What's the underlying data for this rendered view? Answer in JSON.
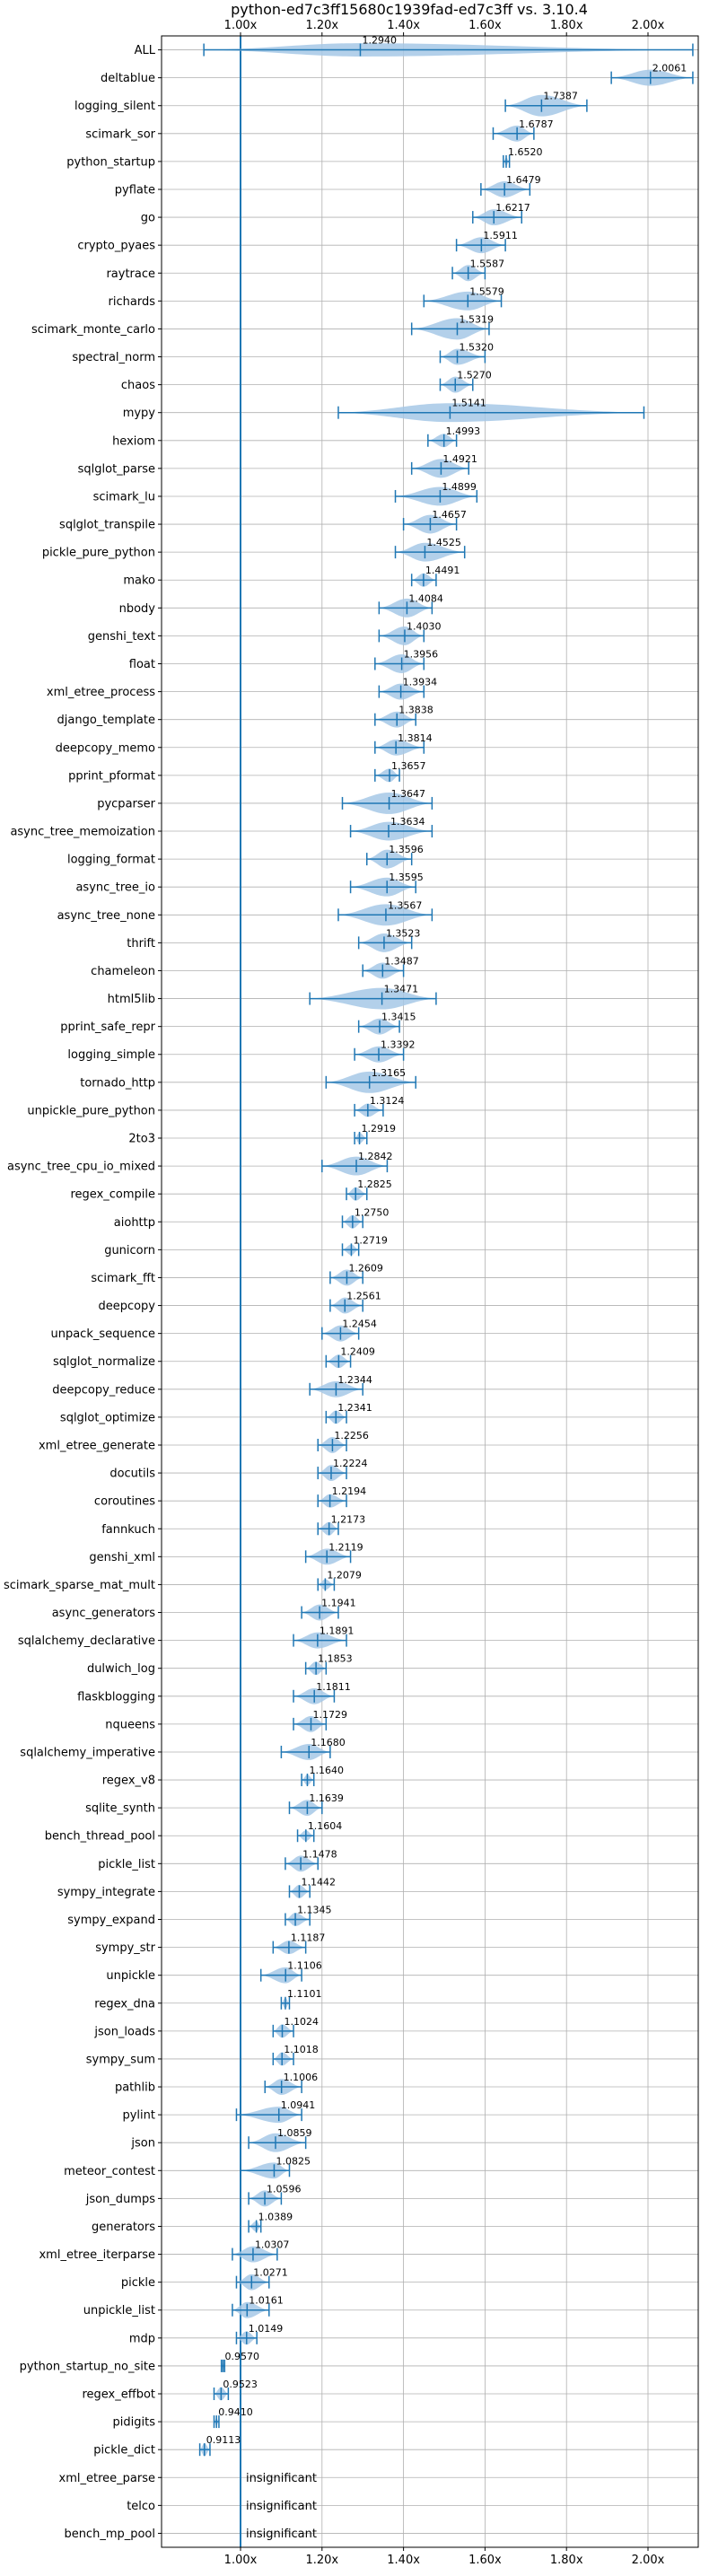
{
  "chart_data": {
    "type": "violin",
    "title": "python-ed7c3ff15680c1939fad-ed7c3ff vs. 3.10.4",
    "xlabel": "",
    "ylabel": "",
    "xlim": [
      0.9,
      2.17
    ],
    "x_ticks": [
      "1.00x",
      "1.20x",
      "1.40x",
      "1.60x",
      "1.80x",
      "2.00x"
    ],
    "x_tick_values": [
      1.0,
      1.2,
      1.4,
      1.6,
      1.8,
      2.0
    ],
    "reference_line": 1.0,
    "grid": true,
    "colors": {
      "line": "#1f77b4",
      "violin": "#a6c8e6"
    },
    "insignificant_label": "insignificant",
    "benchmarks": [
      {
        "name": "ALL",
        "label": "1.2940",
        "value": 1.294,
        "min": 0.91,
        "max": 2.11,
        "spread": 0.5
      },
      {
        "name": "deltablue",
        "label": "2.0061",
        "value": 2.0061,
        "min": 1.91,
        "max": 2.11,
        "spread": 0.6
      },
      {
        "name": "logging_silent",
        "label": "1.7387",
        "value": 1.7387,
        "min": 1.65,
        "max": 1.85,
        "spread": 0.8
      },
      {
        "name": "scimark_sor",
        "label": "1.6787",
        "value": 1.6787,
        "min": 1.62,
        "max": 1.72,
        "spread": 0.6
      },
      {
        "name": "python_startup",
        "label": "1.6520",
        "value": 1.652,
        "min": 1.645,
        "max": 1.66,
        "spread": 0.3
      },
      {
        "name": "pyflate",
        "label": "1.6479",
        "value": 1.6479,
        "min": 1.59,
        "max": 1.71,
        "spread": 0.6
      },
      {
        "name": "go",
        "label": "1.6217",
        "value": 1.6217,
        "min": 1.57,
        "max": 1.69,
        "spread": 0.6
      },
      {
        "name": "crypto_pyaes",
        "label": "1.5911",
        "value": 1.5911,
        "min": 1.53,
        "max": 1.65,
        "spread": 0.6
      },
      {
        "name": "raytrace",
        "label": "1.5587",
        "value": 1.5587,
        "min": 1.52,
        "max": 1.6,
        "spread": 0.6
      },
      {
        "name": "richards",
        "label": "1.5579",
        "value": 1.5579,
        "min": 1.45,
        "max": 1.64,
        "spread": 0.7
      },
      {
        "name": "scimark_monte_carlo",
        "label": "1.5319",
        "value": 1.5319,
        "min": 1.42,
        "max": 1.61,
        "spread": 0.8
      },
      {
        "name": "spectral_norm",
        "label": "1.5320",
        "value": 1.532,
        "min": 1.49,
        "max": 1.6,
        "spread": 0.6
      },
      {
        "name": "chaos",
        "label": "1.5270",
        "value": 1.527,
        "min": 1.49,
        "max": 1.57,
        "spread": 0.6
      },
      {
        "name": "mypy",
        "label": "1.5141",
        "value": 1.5141,
        "min": 1.24,
        "max": 1.99,
        "spread": 0.7
      },
      {
        "name": "hexiom",
        "label": "1.4993",
        "value": 1.4993,
        "min": 1.46,
        "max": 1.53,
        "spread": 0.5
      },
      {
        "name": "sqlglot_parse",
        "label": "1.4921",
        "value": 1.4921,
        "min": 1.42,
        "max": 1.56,
        "spread": 0.7
      },
      {
        "name": "scimark_lu",
        "label": "1.4899",
        "value": 1.4899,
        "min": 1.38,
        "max": 1.58,
        "spread": 0.7
      },
      {
        "name": "sqlglot_transpile",
        "label": "1.4657",
        "value": 1.4657,
        "min": 1.4,
        "max": 1.53,
        "spread": 0.7
      },
      {
        "name": "pickle_pure_python",
        "label": "1.4525",
        "value": 1.4525,
        "min": 1.38,
        "max": 1.55,
        "spread": 0.7
      },
      {
        "name": "mako",
        "label": "1.4491",
        "value": 1.4491,
        "min": 1.42,
        "max": 1.48,
        "spread": 0.5
      },
      {
        "name": "nbody",
        "label": "1.4084",
        "value": 1.4084,
        "min": 1.34,
        "max": 1.47,
        "spread": 0.7
      },
      {
        "name": "genshi_text",
        "label": "1.4030",
        "value": 1.403,
        "min": 1.34,
        "max": 1.45,
        "spread": 0.7
      },
      {
        "name": "float",
        "label": "1.3956",
        "value": 1.3956,
        "min": 1.33,
        "max": 1.45,
        "spread": 0.7
      },
      {
        "name": "xml_etree_process",
        "label": "1.3934",
        "value": 1.3934,
        "min": 1.34,
        "max": 1.45,
        "spread": 0.6
      },
      {
        "name": "django_template",
        "label": "1.3838",
        "value": 1.3838,
        "min": 1.33,
        "max": 1.43,
        "spread": 0.6
      },
      {
        "name": "deepcopy_memo",
        "label": "1.3814",
        "value": 1.3814,
        "min": 1.33,
        "max": 1.45,
        "spread": 0.6
      },
      {
        "name": "pprint_pformat",
        "label": "1.3657",
        "value": 1.3657,
        "min": 1.33,
        "max": 1.39,
        "spread": 0.5
      },
      {
        "name": "pycparser",
        "label": "1.3647",
        "value": 1.3647,
        "min": 1.25,
        "max": 1.47,
        "spread": 0.8
      },
      {
        "name": "async_tree_memoization",
        "label": "1.3634",
        "value": 1.3634,
        "min": 1.27,
        "max": 1.47,
        "spread": 0.7
      },
      {
        "name": "logging_format",
        "label": "1.3596",
        "value": 1.3596,
        "min": 1.31,
        "max": 1.42,
        "spread": 0.7
      },
      {
        "name": "async_tree_io",
        "label": "1.3595",
        "value": 1.3595,
        "min": 1.27,
        "max": 1.43,
        "spread": 0.7
      },
      {
        "name": "async_tree_none",
        "label": "1.3567",
        "value": 1.3567,
        "min": 1.24,
        "max": 1.47,
        "spread": 0.8
      },
      {
        "name": "thrift",
        "label": "1.3523",
        "value": 1.3523,
        "min": 1.29,
        "max": 1.42,
        "spread": 0.7
      },
      {
        "name": "chameleon",
        "label": "1.3487",
        "value": 1.3487,
        "min": 1.3,
        "max": 1.4,
        "spread": 0.6
      },
      {
        "name": "html5lib",
        "label": "1.3471",
        "value": 1.3471,
        "min": 1.17,
        "max": 1.48,
        "spread": 0.8
      },
      {
        "name": "pprint_safe_repr",
        "label": "1.3415",
        "value": 1.3415,
        "min": 1.29,
        "max": 1.39,
        "spread": 0.6
      },
      {
        "name": "logging_simple",
        "label": "1.3392",
        "value": 1.3392,
        "min": 1.28,
        "max": 1.4,
        "spread": 0.6
      },
      {
        "name": "tornado_http",
        "label": "1.3165",
        "value": 1.3165,
        "min": 1.21,
        "max": 1.43,
        "spread": 0.8
      },
      {
        "name": "unpickle_pure_python",
        "label": "1.3124",
        "value": 1.3124,
        "min": 1.28,
        "max": 1.35,
        "spread": 0.5
      },
      {
        "name": "2to3",
        "label": "1.2919",
        "value": 1.2919,
        "min": 1.28,
        "max": 1.31,
        "spread": 0.4
      },
      {
        "name": "async_tree_cpu_io_mixed",
        "label": "1.2842",
        "value": 1.2842,
        "min": 1.2,
        "max": 1.36,
        "spread": 0.7
      },
      {
        "name": "regex_compile",
        "label": "1.2825",
        "value": 1.2825,
        "min": 1.26,
        "max": 1.31,
        "spread": 0.5
      },
      {
        "name": "aiohttp",
        "label": "1.2750",
        "value": 1.275,
        "min": 1.25,
        "max": 1.3,
        "spread": 0.5
      },
      {
        "name": "gunicorn",
        "label": "1.2719",
        "value": 1.2719,
        "min": 1.25,
        "max": 1.29,
        "spread": 0.4
      },
      {
        "name": "scimark_fft",
        "label": "1.2609",
        "value": 1.2609,
        "min": 1.22,
        "max": 1.3,
        "spread": 0.6
      },
      {
        "name": "deepcopy",
        "label": "1.2561",
        "value": 1.2561,
        "min": 1.22,
        "max": 1.3,
        "spread": 0.6
      },
      {
        "name": "unpack_sequence",
        "label": "1.2454",
        "value": 1.2454,
        "min": 1.2,
        "max": 1.29,
        "spread": 0.6
      },
      {
        "name": "sqlglot_normalize",
        "label": "1.2409",
        "value": 1.2409,
        "min": 1.21,
        "max": 1.27,
        "spread": 0.5
      },
      {
        "name": "deepcopy_reduce",
        "label": "1.2344",
        "value": 1.2344,
        "min": 1.17,
        "max": 1.3,
        "spread": 0.6
      },
      {
        "name": "sqlglot_optimize",
        "label": "1.2341",
        "value": 1.2341,
        "min": 1.21,
        "max": 1.26,
        "spread": 0.5
      },
      {
        "name": "xml_etree_generate",
        "label": "1.2256",
        "value": 1.2256,
        "min": 1.19,
        "max": 1.26,
        "spread": 0.6
      },
      {
        "name": "docutils",
        "label": "1.2224",
        "value": 1.2224,
        "min": 1.19,
        "max": 1.26,
        "spread": 0.6
      },
      {
        "name": "coroutines",
        "label": "1.2194",
        "value": 1.2194,
        "min": 1.19,
        "max": 1.26,
        "spread": 0.5
      },
      {
        "name": "fannkuch",
        "label": "1.2173",
        "value": 1.2173,
        "min": 1.19,
        "max": 1.24,
        "spread": 0.5
      },
      {
        "name": "genshi_xml",
        "label": "1.2119",
        "value": 1.2119,
        "min": 1.16,
        "max": 1.27,
        "spread": 0.6
      },
      {
        "name": "scimark_sparse_mat_mult",
        "label": "1.2079",
        "value": 1.2079,
        "min": 1.19,
        "max": 1.23,
        "spread": 0.4
      },
      {
        "name": "async_generators",
        "label": "1.1941",
        "value": 1.1941,
        "min": 1.15,
        "max": 1.24,
        "spread": 0.6
      },
      {
        "name": "sqlalchemy_declarative",
        "label": "1.1891",
        "value": 1.1891,
        "min": 1.13,
        "max": 1.26,
        "spread": 0.6
      },
      {
        "name": "dulwich_log",
        "label": "1.1853",
        "value": 1.1853,
        "min": 1.16,
        "max": 1.21,
        "spread": 0.5
      },
      {
        "name": "flaskblogging",
        "label": "1.1811",
        "value": 1.1811,
        "min": 1.13,
        "max": 1.23,
        "spread": 0.6
      },
      {
        "name": "nqueens",
        "label": "1.1729",
        "value": 1.1729,
        "min": 1.13,
        "max": 1.21,
        "spread": 0.6
      },
      {
        "name": "sqlalchemy_imperative",
        "label": "1.1680",
        "value": 1.168,
        "min": 1.1,
        "max": 1.22,
        "spread": 0.6
      },
      {
        "name": "regex_v8",
        "label": "1.1640",
        "value": 1.164,
        "min": 1.15,
        "max": 1.18,
        "spread": 0.4
      },
      {
        "name": "sqlite_synth",
        "label": "1.1639",
        "value": 1.1639,
        "min": 1.12,
        "max": 1.2,
        "spread": 0.6
      },
      {
        "name": "bench_thread_pool",
        "label": "1.1604",
        "value": 1.1604,
        "min": 1.14,
        "max": 1.18,
        "spread": 0.4
      },
      {
        "name": "pickle_list",
        "label": "1.1478",
        "value": 1.1478,
        "min": 1.11,
        "max": 1.19,
        "spread": 0.6
      },
      {
        "name": "sympy_integrate",
        "label": "1.1442",
        "value": 1.1442,
        "min": 1.12,
        "max": 1.17,
        "spread": 0.5
      },
      {
        "name": "sympy_expand",
        "label": "1.1345",
        "value": 1.1345,
        "min": 1.11,
        "max": 1.17,
        "spread": 0.5
      },
      {
        "name": "sympy_str",
        "label": "1.1187",
        "value": 1.1187,
        "min": 1.08,
        "max": 1.16,
        "spread": 0.5
      },
      {
        "name": "unpickle",
        "label": "1.1106",
        "value": 1.1106,
        "min": 1.05,
        "max": 1.15,
        "spread": 0.6
      },
      {
        "name": "regex_dna",
        "label": "1.1101",
        "value": 1.1101,
        "min": 1.1,
        "max": 1.12,
        "spread": 0.4
      },
      {
        "name": "json_loads",
        "label": "1.1024",
        "value": 1.1024,
        "min": 1.08,
        "max": 1.13,
        "spread": 0.5
      },
      {
        "name": "sympy_sum",
        "label": "1.1018",
        "value": 1.1018,
        "min": 1.08,
        "max": 1.13,
        "spread": 0.5
      },
      {
        "name": "pathlib",
        "label": "1.1006",
        "value": 1.1006,
        "min": 1.06,
        "max": 1.15,
        "spread": 0.6
      },
      {
        "name": "pylint",
        "label": "1.0941",
        "value": 1.0941,
        "min": 0.99,
        "max": 1.15,
        "spread": 0.6
      },
      {
        "name": "json",
        "label": "1.0859",
        "value": 1.0859,
        "min": 1.02,
        "max": 1.16,
        "spread": 0.7
      },
      {
        "name": "meteor_contest",
        "label": "1.0825",
        "value": 1.0825,
        "min": 1.0,
        "max": 1.12,
        "spread": 0.6
      },
      {
        "name": "json_dumps",
        "label": "1.0596",
        "value": 1.0596,
        "min": 1.02,
        "max": 1.1,
        "spread": 0.6
      },
      {
        "name": "generators",
        "label": "1.0389",
        "value": 1.0389,
        "min": 1.02,
        "max": 1.05,
        "spread": 0.4
      },
      {
        "name": "xml_etree_iterparse",
        "label": "1.0307",
        "value": 1.0307,
        "min": 0.98,
        "max": 1.09,
        "spread": 0.6
      },
      {
        "name": "pickle",
        "label": "1.0271",
        "value": 1.0271,
        "min": 0.99,
        "max": 1.07,
        "spread": 0.6
      },
      {
        "name": "unpickle_list",
        "label": "1.0161",
        "value": 1.0161,
        "min": 0.98,
        "max": 1.07,
        "spread": 0.6
      },
      {
        "name": "mdp",
        "label": "1.0149",
        "value": 1.0149,
        "min": 0.99,
        "max": 1.04,
        "spread": 0.5
      },
      {
        "name": "python_startup_no_site",
        "label": "0.9570",
        "value": 0.957,
        "min": 0.953,
        "max": 0.961,
        "spread": 0.3
      },
      {
        "name": "regex_effbot",
        "label": "0.9523",
        "value": 0.9523,
        "min": 0.935,
        "max": 0.97,
        "spread": 0.5
      },
      {
        "name": "pidigits",
        "label": "0.9410",
        "value": 0.941,
        "min": 0.935,
        "max": 0.947,
        "spread": 0.3
      },
      {
        "name": "pickle_dict",
        "label": "0.9113",
        "value": 0.9113,
        "min": 0.9,
        "max": 0.925,
        "spread": 0.5
      },
      {
        "name": "xml_etree_parse",
        "label": "insignificant",
        "insignificant": true
      },
      {
        "name": "telco",
        "label": "insignificant",
        "insignificant": true
      },
      {
        "name": "bench_mp_pool",
        "label": "insignificant",
        "insignificant": true
      }
    ]
  }
}
